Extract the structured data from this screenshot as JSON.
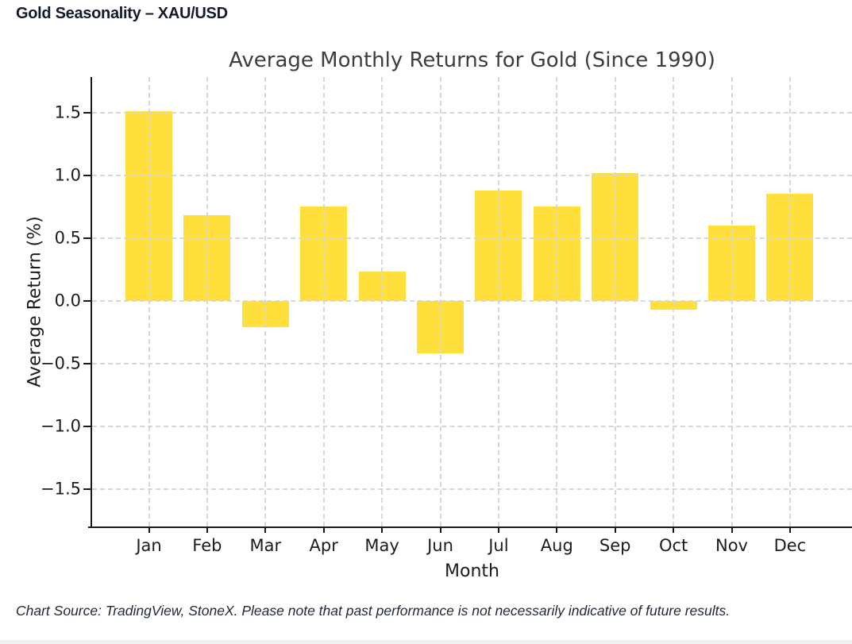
{
  "page_title": "Gold Seasonality – XAU/USD",
  "caption": "Chart Source: TradingView, StoneX. Please note that past performance is not necessarily indicative of future results.",
  "chart_data": {
    "type": "bar",
    "title": "Average Monthly Returns for Gold (Since 1990)",
    "xlabel": "Month",
    "ylabel": "Average Return (%)",
    "categories": [
      "Jan",
      "Feb",
      "Mar",
      "Apr",
      "May",
      "Jun",
      "Jul",
      "Aug",
      "Sep",
      "Oct",
      "Nov",
      "Dec"
    ],
    "values": [
      1.51,
      0.68,
      -0.21,
      0.75,
      0.23,
      -0.42,
      0.88,
      0.75,
      1.02,
      -0.07,
      0.6,
      0.85
    ],
    "yticks": [
      1.5,
      1.0,
      0.5,
      0.0,
      -0.5,
      -1.0,
      -1.5
    ],
    "ylim": [
      -1.8,
      1.8
    ],
    "grid": true,
    "grid_style": "dashed",
    "legend": "none",
    "bar_color": "#FFDF3C",
    "grid_color": "#d7d7d7",
    "axis_color": "#1a1a1a",
    "title_color": "#3d3d3d",
    "header_color": "#121a2b"
  }
}
